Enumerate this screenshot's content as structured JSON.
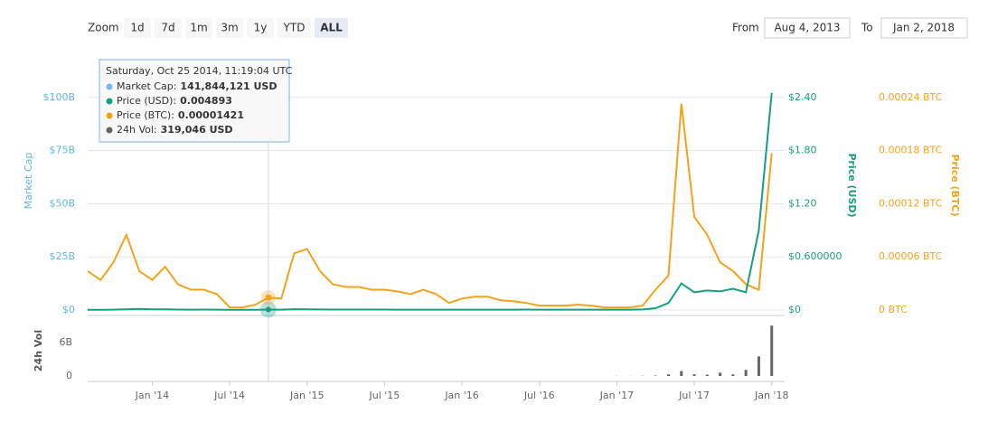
{
  "controls": {
    "zoom_label": "Zoom",
    "zoom_buttons": [
      "1d",
      "7d",
      "1m",
      "3m",
      "1y",
      "YTD",
      "ALL"
    ],
    "active": 6,
    "from_label": "From",
    "from": "Aug 4, 2013",
    "to_label": "To",
    "to": "Jan 2, 2018"
  },
  "tooltip": {
    "date": "Saturday, Oct 25 2014, 11:19:04 UTC",
    "index": 14,
    "rows": [
      {
        "label": "Market Cap:",
        "value": "141,844,121 USD",
        "color": "#7cb5ec"
      },
      {
        "label": "Price (USD):",
        "value": "0.004893",
        "color": "#159f80"
      },
      {
        "label": "Price (BTC):",
        "value": "0.00001421",
        "color": "#f5a21b"
      },
      {
        "label": "24h Vol:",
        "value": "319,046 USD",
        "color": "#666666"
      }
    ]
  },
  "chart_data": [
    {
      "type": "line",
      "ylabel": "Market Cap",
      "y2label": "Price (USD)",
      "y3label": "Price (BTC)",
      "ycolor": "#5fb4e0",
      "grid": true,
      "x": [
        "2013-08",
        "2013-09",
        "2013-10",
        "2013-11",
        "2013-12",
        "2014-01",
        "2014-02",
        "2014-03",
        "2014-04",
        "2014-05",
        "2014-06",
        "2014-07",
        "2014-08",
        "2014-09",
        "2014-10",
        "2014-11",
        "2014-12",
        "2015-01",
        "2015-02",
        "2015-03",
        "2015-04",
        "2015-05",
        "2015-06",
        "2015-07",
        "2015-08",
        "2015-09",
        "2015-10",
        "2015-11",
        "2015-12",
        "2016-01",
        "2016-02",
        "2016-03",
        "2016-04",
        "2016-05",
        "2016-06",
        "2016-07",
        "2016-08",
        "2016-09",
        "2016-10",
        "2016-11",
        "2016-12",
        "2017-01",
        "2017-02",
        "2017-03",
        "2017-04",
        "2017-05",
        "2017-06",
        "2017-07",
        "2017-08",
        "2017-09",
        "2017-10",
        "2017-11",
        "2017-12",
        "2018-01"
      ],
      "xlim": [
        "2013-08",
        "2018-02"
      ],
      "ylim": [
        0,
        105000000000
      ],
      "yticks": [
        {
          "value": 0,
          "label": "$0"
        },
        {
          "value": 25000000000,
          "label": "$25B"
        },
        {
          "value": 50000000000,
          "label": "$50B"
        },
        {
          "value": 75000000000,
          "label": "$75B"
        },
        {
          "value": 100000000000,
          "label": "$100B"
        }
      ],
      "y2lim": [
        0,
        2.52
      ],
      "y2ticks": [
        {
          "value": 0,
          "label": "$0"
        },
        {
          "value": 0.6,
          "label": "$0.600000"
        },
        {
          "value": 1.2,
          "label": "$1.20"
        },
        {
          "value": 1.8,
          "label": "$1.80"
        },
        {
          "value": 2.4,
          "label": "$2.40"
        }
      ],
      "y3lim": [
        0,
        0.000252
      ],
      "y3ticks": [
        {
          "value": 0,
          "label": "0 BTC"
        },
        {
          "value": 6e-05,
          "label": "0.00006 BTC"
        },
        {
          "value": 0.00012,
          "label": "0.00012 BTC"
        },
        {
          "value": 0.00018,
          "label": "0.00018 BTC"
        },
        {
          "value": 0.00024,
          "label": "0.00024 BTC"
        }
      ],
      "series": [
        {
          "name": "Price (BTC)",
          "color": "#f5a21b",
          "axis": "y3",
          "values": [
            4.4e-05,
            3.4e-05,
            5.4e-05,
            8.5e-05,
            4.4e-05,
            3.4e-05,
            4.9e-05,
            2.9e-05,
            2.3e-05,
            2.3e-05,
            1.8e-05,
            3e-06,
            3e-06,
            6e-06,
            1.4e-05,
            1.3e-05,
            6.4e-05,
            6.9e-05,
            4.4e-05,
            2.9e-05,
            2.6e-05,
            2.6e-05,
            2.3e-05,
            2.3e-05,
            2.1e-05,
            1.8e-05,
            2.3e-05,
            1.8e-05,
            8e-06,
            1.3e-05,
            1.5e-05,
            1.5e-05,
            1.1e-05,
            1e-05,
            8e-06,
            5e-06,
            5e-06,
            5e-06,
            6e-06,
            5e-06,
            3e-06,
            3e-06,
            3e-06,
            5e-06,
            2.3e-05,
            3.9e-05,
            0.000233,
            0.000105,
            8.5e-05,
            5.4e-05,
            4.4e-05,
            2.9e-05,
            2.3e-05,
            0.000177
          ]
        },
        {
          "name": "Price (USD)",
          "color": "#159f80",
          "axis": "y2",
          "values": [
            0.003,
            0.003,
            0.004,
            0.008,
            0.012,
            0.008,
            0.007,
            0.005,
            0.004,
            0.005,
            0.004,
            0.003,
            0.003,
            0.003,
            0.0049,
            0.004,
            0.009,
            0.008,
            0.006,
            0.005,
            0.005,
            0.005,
            0.005,
            0.005,
            0.004,
            0.004,
            0.004,
            0.004,
            0.004,
            0.004,
            0.004,
            0.004,
            0.004,
            0.004,
            0.005,
            0.004,
            0.004,
            0.004,
            0.004,
            0.004,
            0.004,
            0.004,
            0.004,
            0.006,
            0.02,
            0.08,
            0.3,
            0.2,
            0.22,
            0.21,
            0.24,
            0.2,
            0.9,
            2.45
          ]
        }
      ]
    },
    {
      "type": "bar",
      "ylabel": "24h Vol",
      "color": "#666666",
      "x": [
        "2013-08",
        "2013-09",
        "2013-10",
        "2013-11",
        "2013-12",
        "2014-01",
        "2014-02",
        "2014-03",
        "2014-04",
        "2014-05",
        "2014-06",
        "2014-07",
        "2014-08",
        "2014-09",
        "2014-10",
        "2014-11",
        "2014-12",
        "2015-01",
        "2015-02",
        "2015-03",
        "2015-04",
        "2015-05",
        "2015-06",
        "2015-07",
        "2015-08",
        "2015-09",
        "2015-10",
        "2015-11",
        "2015-12",
        "2016-01",
        "2016-02",
        "2016-03",
        "2016-04",
        "2016-05",
        "2016-06",
        "2016-07",
        "2016-08",
        "2016-09",
        "2016-10",
        "2016-11",
        "2016-12",
        "2017-01",
        "2017-02",
        "2017-03",
        "2017-04",
        "2017-05",
        "2017-06",
        "2017-07",
        "2017-08",
        "2017-09",
        "2017-10",
        "2017-11",
        "2017-12",
        "2018-01"
      ],
      "xlim": [
        "2013-08",
        "2018-02"
      ],
      "xticks": [
        {
          "value": "2014-01",
          "label": "Jan '14"
        },
        {
          "value": "2014-07",
          "label": "Jul '14"
        },
        {
          "value": "2015-01",
          "label": "Jan '15"
        },
        {
          "value": "2015-07",
          "label": "Jul '15"
        },
        {
          "value": "2016-01",
          "label": "Jan '16"
        },
        {
          "value": "2016-07",
          "label": "Jul '16"
        },
        {
          "value": "2017-01",
          "label": "Jan '17"
        },
        {
          "value": "2017-07",
          "label": "Jul '17"
        },
        {
          "value": "2018-01",
          "label": "Jan '18"
        }
      ],
      "ylim": [
        0,
        10000000000
      ],
      "yticks": [
        0,
        {
          "value": 6000000000,
          "label": "6B"
        }
      ],
      "values": [
        1000000,
        2000000,
        3000000,
        8000000,
        5000000,
        3000000,
        2000000,
        1000000,
        1000000,
        1000000,
        1000000,
        1000000,
        1000000,
        1000000,
        319046,
        1000000,
        4000000,
        3000000,
        2000000,
        2000000,
        2000000,
        2000000,
        2000000,
        2000000,
        2000000,
        2000000,
        2000000,
        2000000,
        2000000,
        2000000,
        2000000,
        2000000,
        2000000,
        2000000,
        3000000,
        2000000,
        2000000,
        2000000,
        2000000,
        2000000,
        2000000,
        20000000,
        15000000,
        40000000,
        80000000,
        300000000,
        900000000,
        300000000,
        250000000,
        600000000,
        300000000,
        1100000000,
        3500000000,
        9000000000
      ]
    }
  ]
}
